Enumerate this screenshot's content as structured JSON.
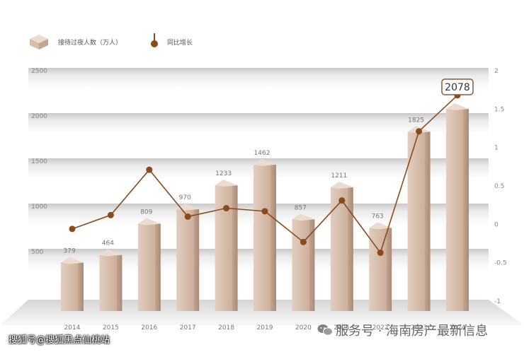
{
  "legend": {
    "bar_label": "接待过夜人数（万人）",
    "line_label": "同比增长"
  },
  "watermark": {
    "left": "搜狐号@搜狐黑点仙桃站",
    "right": "服务号 · 海南房产最新信息"
  },
  "colors": {
    "bar": "#dcc4b4",
    "bar_dark": "#c3a592",
    "line": "#8a4b1c",
    "badge": "#8a5a3c"
  },
  "chart_data": {
    "type": "bar",
    "categories": [
      "2014",
      "2015",
      "2016",
      "2017",
      "2018",
      "2019",
      "2020",
      "2021",
      "2022",
      "2023",
      "2024"
    ],
    "series": [
      {
        "name": "接待过夜人数（万人）",
        "axis": "left",
        "values": [
          379,
          464,
          809,
          970,
          1233,
          1462,
          857,
          1211,
          763,
          1825,
          2078
        ],
        "labels": [
          "379",
          "464",
          "809",
          "970",
          "1233",
          "1462",
          "857",
          "1211",
          "763",
          "1825",
          "2078"
        ]
      },
      {
        "name": "同比增长",
        "type": "line",
        "axis": "right",
        "values": [
          -0.06,
          0.12,
          0.71,
          0.1,
          0.21,
          0.17,
          -0.23,
          0.31,
          -0.37,
          1.21,
          1.68
        ]
      }
    ],
    "y_left_ticks": [
      "500",
      "1000",
      "1500",
      "2000",
      "2500"
    ],
    "y_right_ticks": [
      "2",
      "1.5",
      "1",
      "0.5",
      "0",
      "-0.5",
      "-1"
    ],
    "ylim_left": [
      0,
      2500
    ],
    "ylim_right": [
      -1,
      2
    ],
    "highlight": "2078",
    "legend_position": "top-left",
    "grid": true
  }
}
